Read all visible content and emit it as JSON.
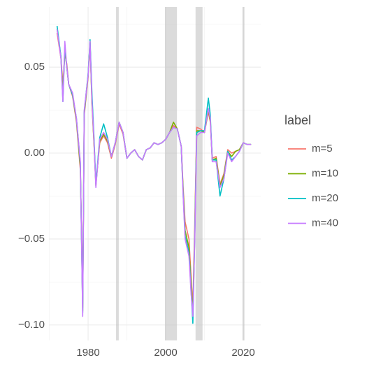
{
  "chart_data": {
    "type": "line",
    "x": [
      1972,
      1973,
      1973.5,
      1974,
      1974.5,
      1975,
      1976,
      1977,
      1978,
      1978.3,
      1978.6,
      1979,
      1980,
      1980.5,
      1981,
      1981.5,
      1982,
      1983,
      1984,
      1985,
      1986,
      1987,
      1988,
      1989,
      1990,
      1991,
      1992,
      1993,
      1994,
      1995,
      1996,
      1997,
      1998,
      1999,
      2000,
      2001,
      2002,
      2003,
      2004,
      2004.5,
      2005,
      2006,
      2006.5,
      2007,
      2007.5,
      2008,
      2009,
      2010,
      2011,
      2011.5,
      2012,
      2013,
      2014,
      2015,
      2016,
      2017,
      2018,
      2019,
      2020,
      2021,
      2022
    ],
    "series": [
      {
        "name": "m=5",
        "color": "#f8766d",
        "values": [
          0.07,
          0.055,
          0.04,
          0.058,
          0.052,
          0.04,
          0.033,
          0.018,
          -0.01,
          -0.045,
          -0.09,
          0.022,
          0.044,
          0.064,
          0.028,
          0.006,
          -0.018,
          0.006,
          0.01,
          0.006,
          -0.003,
          0.005,
          0.017,
          0.011,
          -0.003,
          0.0,
          0.002,
          -0.002,
          -0.004,
          0.002,
          0.003,
          0.006,
          0.005,
          0.006,
          0.008,
          0.012,
          0.016,
          0.014,
          0.004,
          -0.02,
          -0.04,
          -0.05,
          -0.07,
          -0.09,
          -0.04,
          0.015,
          0.014,
          0.012,
          0.024,
          0.018,
          -0.003,
          -0.002,
          -0.018,
          -0.012,
          0.002,
          0.0,
          0.001,
          0.002,
          0.006,
          0.005,
          0.005
        ]
      },
      {
        "name": "m=10",
        "color": "#7cae00",
        "values": [
          0.072,
          0.056,
          0.035,
          0.06,
          0.05,
          0.04,
          0.034,
          0.019,
          -0.008,
          -0.048,
          -0.092,
          0.023,
          0.045,
          0.065,
          0.029,
          0.007,
          -0.019,
          0.007,
          0.011,
          0.007,
          -0.002,
          0.006,
          0.018,
          0.012,
          -0.003,
          0.0,
          0.002,
          -0.002,
          -0.004,
          0.002,
          0.003,
          0.006,
          0.005,
          0.006,
          0.008,
          0.012,
          0.018,
          0.014,
          0.004,
          -0.022,
          -0.045,
          -0.055,
          -0.075,
          -0.093,
          -0.045,
          0.013,
          0.013,
          0.012,
          0.025,
          0.019,
          -0.004,
          -0.003,
          -0.019,
          -0.013,
          0.001,
          -0.002,
          0.001,
          0.002,
          0.006,
          0.005,
          0.005
        ]
      },
      {
        "name": "m=20",
        "color": "#00bfc4",
        "values": [
          0.074,
          0.056,
          0.03,
          0.062,
          0.05,
          0.04,
          0.034,
          0.02,
          -0.006,
          -0.05,
          -0.093,
          0.024,
          0.046,
          0.066,
          0.034,
          0.01,
          -0.018,
          0.009,
          0.017,
          0.009,
          -0.002,
          0.006,
          0.018,
          0.012,
          -0.003,
          0.0,
          0.002,
          -0.002,
          -0.004,
          0.002,
          0.003,
          0.006,
          0.005,
          0.006,
          0.008,
          0.012,
          0.015,
          0.014,
          0.004,
          -0.024,
          -0.048,
          -0.058,
          -0.078,
          -0.099,
          -0.048,
          0.012,
          0.013,
          0.013,
          0.032,
          0.022,
          -0.004,
          -0.004,
          -0.025,
          -0.015,
          0.001,
          -0.004,
          -0.002,
          0.001,
          0.006,
          0.005,
          0.005
        ]
      },
      {
        "name": "m=40",
        "color": "#c77cff",
        "values": [
          0.072,
          0.055,
          0.03,
          0.065,
          0.05,
          0.04,
          0.035,
          0.02,
          -0.005,
          -0.05,
          -0.095,
          0.025,
          0.045,
          0.065,
          0.03,
          0.008,
          -0.02,
          0.008,
          0.012,
          0.008,
          -0.002,
          0.006,
          0.018,
          0.012,
          -0.003,
          0.0,
          0.002,
          -0.002,
          -0.004,
          0.002,
          0.003,
          0.006,
          0.005,
          0.006,
          0.008,
          0.012,
          0.015,
          0.014,
          0.004,
          -0.025,
          -0.05,
          -0.06,
          -0.08,
          -0.095,
          -0.05,
          0.01,
          0.012,
          0.012,
          0.026,
          0.02,
          -0.005,
          -0.005,
          -0.02,
          -0.015,
          0.0,
          -0.005,
          -0.002,
          0.001,
          0.006,
          0.005,
          0.005
        ]
      }
    ],
    "shaded_regions": [
      [
        1987.2,
        1987.9
      ],
      [
        1999.8,
        2002.9
      ],
      [
        2007.7,
        2009.5
      ],
      [
        2019.8,
        2020.3
      ]
    ],
    "shade_color": "#bebebe",
    "xlim": [
      1969.9,
      2024.5
    ],
    "ylim": [
      -0.109,
      0.085
    ],
    "xticks": [
      1980,
      2000,
      2020
    ],
    "x_minor_ticks": [
      1970,
      1990,
      2010
    ],
    "yticks": [
      {
        "value": 0.05,
        "label": "0.05"
      },
      {
        "value": 0.0,
        "label": "0.00"
      },
      {
        "value": -0.05,
        "label": "−0.05"
      },
      {
        "value": -0.1,
        "label": "−0.10"
      }
    ],
    "y_minor_ticks": [
      0.075,
      0.025,
      -0.025,
      -0.075
    ],
    "grid": true,
    "legend_title": "label",
    "legend_position": "right"
  }
}
